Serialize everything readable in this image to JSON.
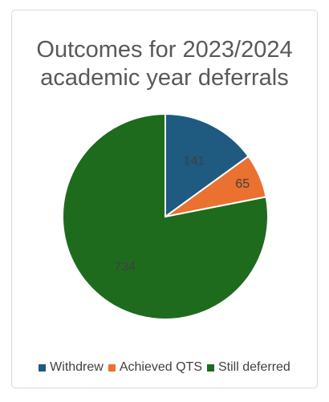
{
  "chart_data": {
    "type": "pie",
    "title_lines": [
      "Outcomes for 2023/2024",
      "academic year deferrals"
    ],
    "slices": [
      {
        "label": "Withdrew",
        "value": 141,
        "color": "#1f5a80"
      },
      {
        "label": "Achieved QTS",
        "value": 65,
        "color": "#ea7130"
      },
      {
        "label": "Still deferred",
        "value": 734,
        "color": "#1e6b1e"
      }
    ],
    "legend_position": "bottom",
    "data_label_color": "#404040"
  }
}
